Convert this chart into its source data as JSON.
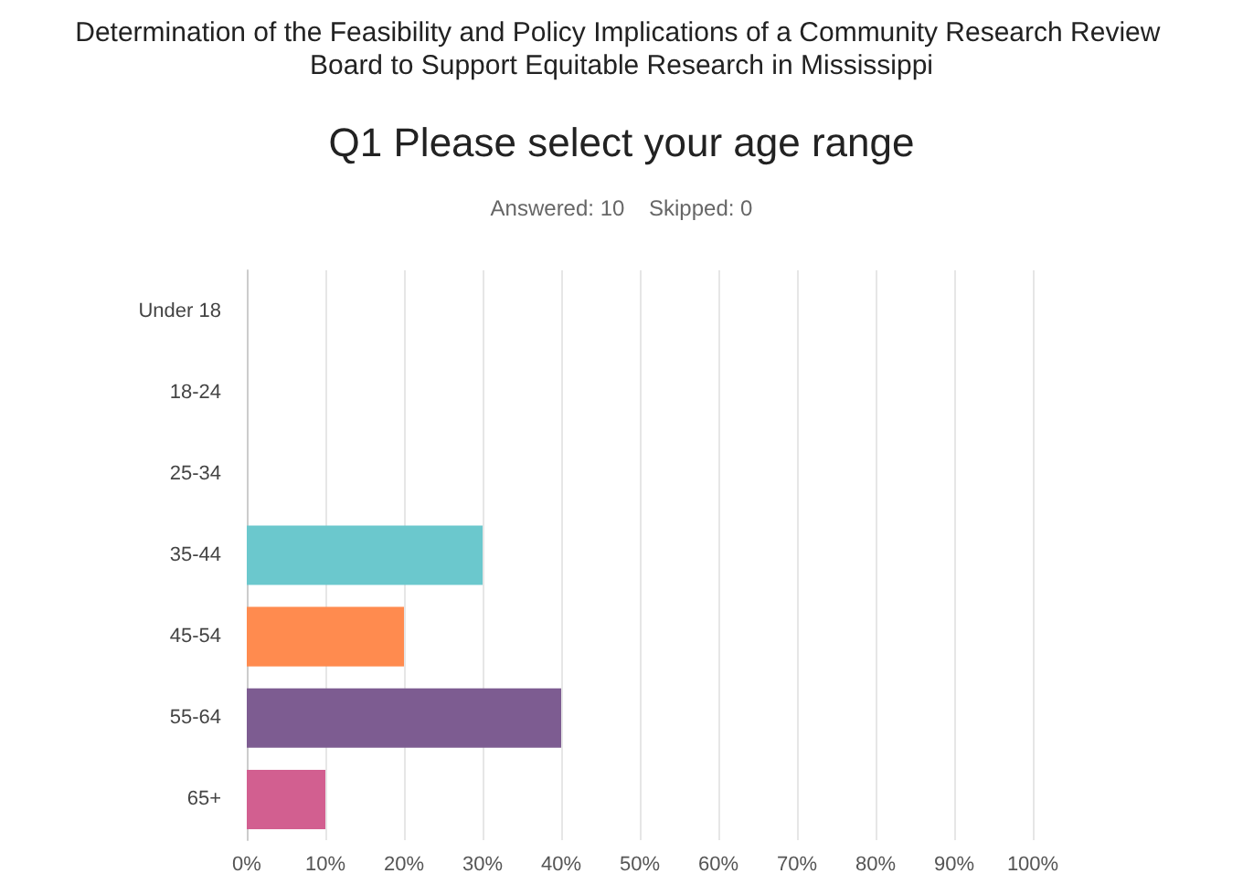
{
  "chart_data": {
    "type": "bar",
    "orientation": "horizontal",
    "title": "Determination of the Feasibility and Policy Implications of a Community Research Review Board to Support Equitable Research in Mississippi",
    "subtitle": "Q1 Please select your age range",
    "annotations": [
      "Answered: 10    Skipped: 0"
    ],
    "categories": [
      "Under 18",
      "18-24",
      "25-34",
      "35-44",
      "45-54",
      "55-64",
      "65+"
    ],
    "values": [
      0,
      0,
      0,
      30,
      20,
      40,
      10
    ],
    "colors": [
      "#6bc8cd",
      "#ff8b4f",
      "#7d5c91",
      "#6bc8cd",
      "#ff8b4f",
      "#7d5c91",
      "#d25f90"
    ],
    "xlim": [
      0,
      100
    ],
    "xticks": [
      {
        "value": 0,
        "label": "0%"
      },
      {
        "value": 10,
        "label": "10%"
      },
      {
        "value": 20,
        "label": "20%"
      },
      {
        "value": 30,
        "label": "30%"
      },
      {
        "value": 40,
        "label": "40%"
      },
      {
        "value": 50,
        "label": "50%"
      },
      {
        "value": 60,
        "label": "60%"
      },
      {
        "value": 70,
        "label": "70%"
      },
      {
        "value": 80,
        "label": "80%"
      },
      {
        "value": 90,
        "label": "90%"
      },
      {
        "value": 100,
        "label": "100%"
      }
    ],
    "grid": "x"
  }
}
